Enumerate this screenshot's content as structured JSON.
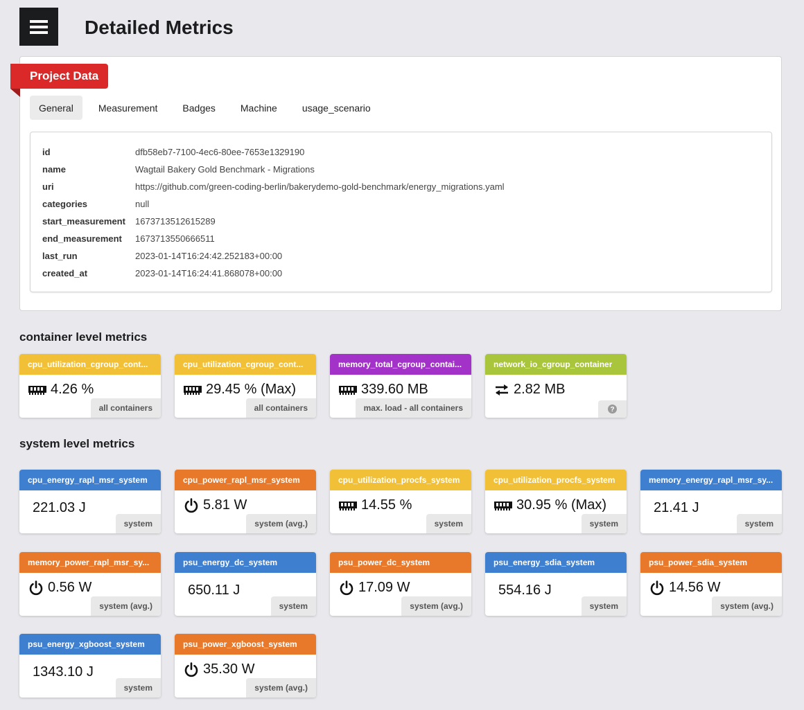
{
  "page": {
    "title": "Detailed Metrics"
  },
  "project": {
    "ribbon": "Project Data",
    "tabs": [
      "General",
      "Measurement",
      "Badges",
      "Machine",
      "usage_scenario"
    ],
    "info": [
      {
        "key": "id",
        "value": "dfb58eb7-7100-4ec6-80ee-7653e1329190"
      },
      {
        "key": "name",
        "value": "Wagtail Bakery Gold Benchmark - Migrations"
      },
      {
        "key": "uri",
        "value": "https://github.com/green-coding-berlin/bakerydemo-gold-benchmark/energy_migrations.yaml"
      },
      {
        "key": "categories",
        "value": "null"
      },
      {
        "key": "start_measurement",
        "value": "1673713512615289"
      },
      {
        "key": "end_measurement",
        "value": "1673713550666511"
      },
      {
        "key": "last_run",
        "value": "2023-01-14T16:24:42.252183+00:00"
      },
      {
        "key": "created_at",
        "value": "2023-01-14T16:24:41.868078+00:00"
      }
    ]
  },
  "container_section": {
    "title": "container level metrics",
    "cards": [
      {
        "head": "cpu_utilization_cgroup_cont...",
        "value": "4.26 %",
        "label": "all containers",
        "icon": "memory-icon",
        "color": "#f2c037"
      },
      {
        "head": "cpu_utilization_cgroup_cont...",
        "value": "29.45 % (Max)",
        "label": "all containers",
        "icon": "memory-icon",
        "color": "#f2c037"
      },
      {
        "head": "memory_total_cgroup_contai...",
        "value": "339.60 MB",
        "label": "max. load - all containers",
        "icon": "memory-icon",
        "color": "#a333c8"
      },
      {
        "head": "network_io_cgroup_container",
        "value": "2.82 MB",
        "label": "?",
        "icon": "exchange-icon",
        "color": "#a9c53b"
      }
    ]
  },
  "system_section": {
    "title": "system level metrics",
    "cards": [
      {
        "head": "cpu_energy_rapl_msr_system",
        "value": "221.03 J",
        "label": "system",
        "icon": "",
        "color": "#3f7fd0"
      },
      {
        "head": "cpu_power_rapl_msr_system",
        "value": "5.81 W",
        "label": "system (avg.)",
        "icon": "power-icon",
        "color": "#e8792a"
      },
      {
        "head": "cpu_utilization_procfs_system",
        "value": "14.55 %",
        "label": "system",
        "icon": "memory-icon",
        "color": "#f2c037"
      },
      {
        "head": "cpu_utilization_procfs_system",
        "value": "30.95 % (Max)",
        "label": "system",
        "icon": "memory-icon",
        "color": "#f2c037"
      },
      {
        "head": "memory_energy_rapl_msr_sy...",
        "value": "21.41 J",
        "label": "system",
        "icon": "",
        "color": "#3f7fd0"
      },
      {
        "head": "memory_power_rapl_msr_sy...",
        "value": "0.56 W",
        "label": "system (avg.)",
        "icon": "power-icon",
        "color": "#e8792a"
      },
      {
        "head": "psu_energy_dc_system",
        "value": "650.11 J",
        "label": "system",
        "icon": "",
        "color": "#3f7fd0"
      },
      {
        "head": "psu_power_dc_system",
        "value": "17.09 W",
        "label": "system (avg.)",
        "icon": "power-icon",
        "color": "#e8792a"
      },
      {
        "head": "psu_energy_sdia_system",
        "value": "554.16 J",
        "label": "system",
        "icon": "",
        "color": "#3f7fd0"
      },
      {
        "head": "psu_power_sdia_system",
        "value": "14.56 W",
        "label": "system (avg.)",
        "icon": "power-icon",
        "color": "#e8792a"
      },
      {
        "head": "psu_energy_xgboost_system",
        "value": "1343.10 J",
        "label": "system",
        "icon": "",
        "color": "#3f7fd0"
      },
      {
        "head": "psu_power_xgboost_system",
        "value": "35.30 W",
        "label": "system (avg.)",
        "icon": "power-icon",
        "color": "#e8792a"
      }
    ]
  }
}
